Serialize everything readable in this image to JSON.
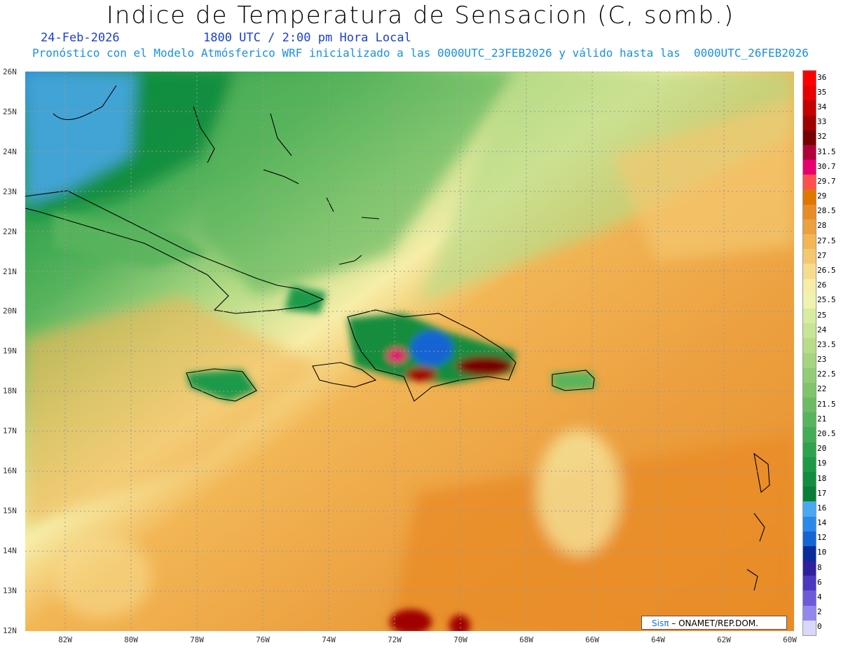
{
  "header": {
    "title": "Indice de Temperatura de Sensacion (C, somb.)",
    "date": "24-Feb-2026",
    "time": "1800 UTC / 2:00 pm Hora Local",
    "model_line": "Pronóstico con el Modelo Atmósferico WRF inicializado a las 0000UTC_23FEB2026 y válido hasta las  0000UTC_26FEB2026"
  },
  "axes": {
    "lat_labels": [
      "26N",
      "25N",
      "24N",
      "23N",
      "22N",
      "21N",
      "20N",
      "19N",
      "18N",
      "17N",
      "16N",
      "15N",
      "14N",
      "13N",
      "12N"
    ],
    "lon_labels": [
      "82W",
      "80W",
      "78W",
      "76W",
      "74W",
      "72W",
      "70W",
      "68W",
      "66W",
      "64W",
      "62W",
      "60W"
    ]
  },
  "colorbar": {
    "labels": [
      "36",
      "35",
      "34",
      "33",
      "32",
      "31.5",
      "30.7",
      "29.7",
      "29",
      "28.5",
      "28",
      "27.5",
      "27",
      "26.5",
      "26",
      "25.5",
      "25",
      "24",
      "23.5",
      "23",
      "22.5",
      "22",
      "21.5",
      "21",
      "20.5",
      "20",
      "19",
      "18",
      "17",
      "16",
      "14",
      "12",
      "10",
      "8",
      "6",
      "4",
      "2",
      "0"
    ],
    "colors": [
      "#ff0000",
      "#e60000",
      "#c40000",
      "#a00000",
      "#780000",
      "#b0003c",
      "#e8006e",
      "#ff5050",
      "#e07800",
      "#e88c28",
      "#eca040",
      "#f2b655",
      "#f4c870",
      "#f6dc8e",
      "#f6eea8",
      "#eef4b0",
      "#d8eca0",
      "#c8e498",
      "#b8dc88",
      "#a6d480",
      "#92cc76",
      "#80c46c",
      "#6cbc64",
      "#58b45c",
      "#44ac56",
      "#2fa24e",
      "#1d9a48",
      "#128c3e",
      "#0a7e36",
      "#4aa8f0",
      "#2a88e8",
      "#1464d4",
      "#0a2c9a",
      "#3020a0",
      "#4a38c0",
      "#6c5ad8",
      "#9488ec",
      "#d8d8f8"
    ]
  },
  "credit": {
    "brand": "Sisπ",
    "org": " – ONAMET/REP.DOM."
  }
}
